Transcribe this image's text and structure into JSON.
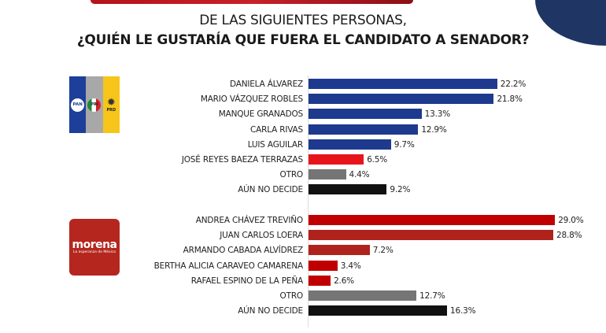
{
  "title": {
    "line1": "DE LAS SIGUIENTES PERSONAS,",
    "line2": "¿QUIÉN LE GUSTARÍA QUE FUERA EL CANDIDATO A SENADOR?"
  },
  "logos": {
    "coalition": {
      "pan": "PAN",
      "pri": "PRI",
      "prd": "PRD"
    },
    "morena": {
      "name": "morena",
      "tagline": "La esperanza de México"
    }
  },
  "colors": {
    "coalition_bar": "#1d3a8f",
    "highlight_bar": "#e8141b",
    "otro_bar": "#757575",
    "undecided_bar": "#111111",
    "morena_bar_a": "#c00000",
    "morena_bar_b": "#b0221c"
  },
  "chart_data": [
    {
      "type": "bar",
      "orientation": "horizontal",
      "group": "PAN-PRI-PRD",
      "title": "¿QUIÉN LE GUSTARÍA QUE FUERA EL CANDIDATO A SENADOR?",
      "unit": "%",
      "categories": [
        "DANIELA ÁLVAREZ",
        "MARIO VÁZQUEZ ROBLES",
        "MANQUE GRANADOS",
        "CARLA RIVAS",
        "LUIS AGUILAR",
        "JOSÉ REYES BAEZA TERRAZAS",
        "OTRO",
        "AÚN NO DECIDE"
      ],
      "values": [
        22.2,
        21.8,
        13.3,
        12.9,
        9.7,
        6.5,
        4.4,
        9.2
      ],
      "labels": [
        "22.2%",
        "21.8%",
        "13.3%",
        "12.9%",
        "9.7%",
        "6.5%",
        "4.4%",
        "9.2%"
      ],
      "bar_colors": [
        "#1d3a8f",
        "#1d3a8f",
        "#1d3a8f",
        "#1d3a8f",
        "#1d3a8f",
        "#e8141b",
        "#757575",
        "#111111"
      ],
      "xlim": [
        0,
        30
      ]
    },
    {
      "type": "bar",
      "orientation": "horizontal",
      "group": "MORENA",
      "title": "¿QUIÉN LE GUSTARÍA QUE FUERA EL CANDIDATO A SENADOR?",
      "unit": "%",
      "categories": [
        "ANDREA CHÁVEZ TREVIÑO",
        "JUAN CARLOS LOERA",
        "ARMANDO CABADA ALVÍDREZ",
        "BERTHA ALICIA CARAVEO CAMARENA",
        "RAFAEL ESPINO DE LA PEÑA",
        "OTRO",
        "AÚN NO DECIDE"
      ],
      "values": [
        29.0,
        28.8,
        7.2,
        3.4,
        2.6,
        12.7,
        16.3
      ],
      "labels": [
        "29.0%",
        "28.8%",
        "7.2%",
        "3.4%",
        "2.6%",
        "12.7%",
        "16.3%"
      ],
      "bar_colors": [
        "#c00000",
        "#b0221c",
        "#b0221c",
        "#c00000",
        "#c00000",
        "#757575",
        "#111111"
      ],
      "xlim": [
        0,
        30
      ]
    }
  ]
}
